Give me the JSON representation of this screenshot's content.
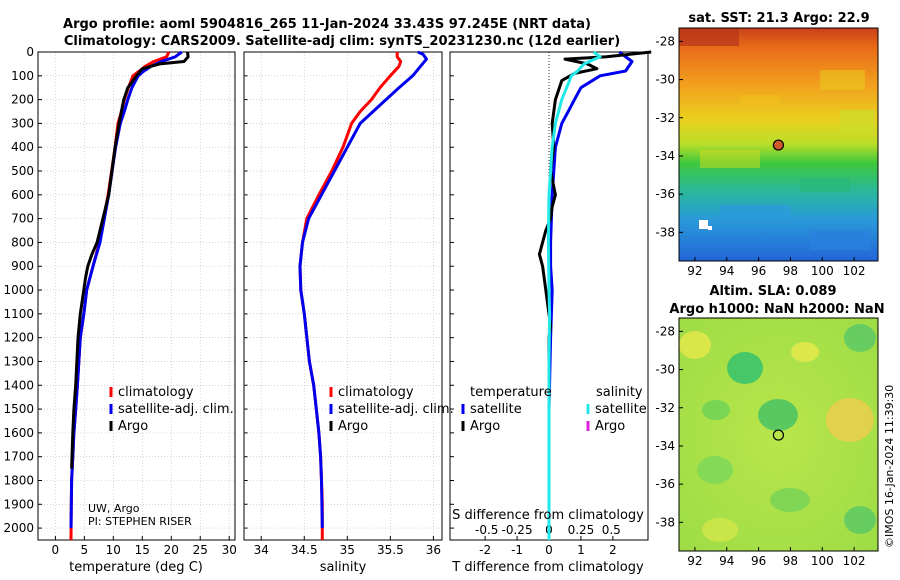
{
  "title_line1": "Argo profile: aoml 5904816_265 11-Jan-2024 33.43S 97.245E (NRT data)",
  "title_line2": "Climatology: CARS2009. Satellite-adj clim: synTS_20231230.nc (12d earlier)",
  "credit": "©IMOS 16-Jan-2024 11:39:30",
  "colors": {
    "clim": "#ff0000",
    "sat": "#0000ee",
    "argo": "#000000",
    "sat_s": "#22e8e8",
    "argo_s": "#dd22dd"
  },
  "depth_ticks": [
    "0",
    "100",
    "200",
    "300",
    "400",
    "500",
    "600",
    "700",
    "800",
    "900",
    "1000",
    "1100",
    "1200",
    "1300",
    "1400",
    "1500",
    "1600",
    "1700",
    "1800",
    "1900",
    "2000"
  ],
  "chart_data": [
    {
      "type": "line",
      "xlabel": "temperature (deg C)",
      "ylabel": "depth (dbar)",
      "xlim": [
        -3,
        31
      ],
      "ylim": [
        2050,
        0
      ],
      "xticks": [
        "0",
        "5",
        "10",
        "15",
        "20",
        "25",
        "30"
      ],
      "legend": [
        "climatology",
        "satellite-adj. clim.",
        "Argo"
      ],
      "annotation": [
        "UW, Argo",
        "PI: STEPHEN RISER"
      ],
      "series": [
        {
          "name": "climatology",
          "color": "#ff0000",
          "x": [
            19.6,
            19.2,
            17.0,
            15.5,
            14.5,
            13.4,
            12.6,
            11.9,
            11.4,
            10.8,
            10.3,
            9.1,
            7.6,
            6.5,
            5.4,
            4.9,
            4.3,
            3.8,
            3.5,
            3.2,
            3.0,
            2.8,
            2.75,
            2.7
          ],
          "y": [
            0,
            20,
            40,
            60,
            80,
            100,
            150,
            200,
            250,
            300,
            400,
            600,
            800,
            900,
            1000,
            1100,
            1200,
            1400,
            1500,
            1600,
            1700,
            1800,
            1900,
            2050
          ]
        },
        {
          "name": "satellite-adj. clim.",
          "color": "#0000ee",
          "x": [
            21.8,
            20.7,
            18.3,
            16.5,
            15.3,
            14.3,
            13.2,
            12.5,
            11.9,
            11.2,
            10.4,
            9.2,
            7.7,
            6.5,
            5.4,
            4.9,
            4.3,
            3.8,
            3.5,
            3.2,
            3.0,
            2.8,
            2.7
          ],
          "y": [
            0,
            20,
            40,
            60,
            80,
            100,
            150,
            200,
            250,
            300,
            400,
            600,
            800,
            900,
            1000,
            1100,
            1200,
            1400,
            1500,
            1600,
            1700,
            1800,
            2000
          ]
        },
        {
          "name": "Argo",
          "color": "#000000",
          "x": [
            22.8,
            22.9,
            22.2,
            18.0,
            15.0,
            14.0,
            12.5,
            11.8,
            11.4,
            11.0,
            10.3,
            9.2,
            7.2,
            6.3,
            5.6,
            5.2,
            4.9,
            4.3,
            3.9,
            3.5,
            3.2,
            3.0,
            2.8
          ],
          "y": [
            0,
            20,
            40,
            50,
            70,
            100,
            150,
            200,
            250,
            300,
            400,
            600,
            800,
            850,
            900,
            950,
            1000,
            1100,
            1200,
            1400,
            1500,
            1600,
            1750
          ]
        }
      ]
    },
    {
      "type": "line",
      "xlabel": "salinity",
      "ylabel": "depth (dbar)",
      "xlim": [
        33.8,
        36.1
      ],
      "ylim": [
        2050,
        0
      ],
      "xticks": [
        "34",
        "34.5",
        "35",
        "35.5",
        "36"
      ],
      "legend": [
        "climatology",
        "satellite-adj. clim.",
        "Argo"
      ],
      "series": [
        {
          "name": "climatology",
          "color": "#ff0000",
          "x": [
            35.58,
            35.58,
            35.62,
            35.6,
            35.5,
            35.38,
            35.28,
            35.15,
            35.05,
            34.95,
            34.82,
            34.67,
            34.53,
            34.48,
            34.45,
            34.46,
            34.5,
            34.56,
            34.61,
            34.64,
            34.67,
            34.69,
            34.7,
            34.71,
            34.71
          ],
          "y": [
            0,
            20,
            40,
            60,
            100,
            150,
            200,
            250,
            300,
            400,
            500,
            600,
            700,
            800,
            900,
            1000,
            1100,
            1300,
            1400,
            1500,
            1600,
            1700,
            1800,
            1900,
            2050
          ]
        },
        {
          "name": "satellite-adj. clim.",
          "color": "#0000ee",
          "x": [
            35.82,
            35.88,
            35.92,
            35.85,
            35.76,
            35.6,
            35.45,
            35.3,
            35.15,
            35.0,
            34.85,
            34.7,
            34.55,
            34.48,
            34.45,
            34.46,
            34.5,
            34.56,
            34.61,
            34.64,
            34.67,
            34.69,
            34.7,
            34.71
          ],
          "y": [
            0,
            10,
            30,
            60,
            100,
            150,
            200,
            250,
            300,
            400,
            500,
            600,
            700,
            800,
            900,
            1000,
            1100,
            1300,
            1400,
            1500,
            1600,
            1700,
            1800,
            2000
          ]
        },
        {
          "name": "Argo",
          "color": "#000000",
          "x": [],
          "y": []
        }
      ]
    },
    {
      "type": "line",
      "xlabel": "T difference from climatology",
      "xlabel_top": "S difference from climatology",
      "ylabel": "depth (dbar)",
      "xlim": [
        -3.1,
        3.1
      ],
      "ylim": [
        2050,
        0
      ],
      "xticks": [
        "-2",
        "-1",
        "0",
        "1",
        "2"
      ],
      "xticks_s": [
        "-0.5",
        "-0.25",
        "0",
        "0.25",
        "0.5"
      ],
      "legend_temperature_title": "temperature",
      "legend_salinity_title": "salinity",
      "legend_temperature": [
        "satellite",
        "Argo"
      ],
      "legend_salinity": [
        "satellite",
        "Argo"
      ],
      "series": [
        {
          "name": "temperature satellite",
          "color": "#0000ee",
          "x": [
            2.2,
            2.6,
            2.4,
            1.6,
            1.0,
            0.8,
            0.6,
            0.4,
            0.2,
            0.1,
            0.05,
            0.05,
            0.1,
            0.05,
            0.0,
            0.0
          ],
          "y": [
            0,
            40,
            80,
            100,
            150,
            200,
            250,
            300,
            400,
            600,
            800,
            900,
            1000,
            1200,
            1500,
            2000
          ]
        },
        {
          "name": "temperature Argo",
          "color": "#000000",
          "x": [
            3.2,
            1.8,
            0.5,
            1.2,
            1.5,
            0.8,
            0.4,
            0.2,
            0.1,
            0.15,
            0.05,
            0.2,
            0.1,
            0.05,
            -0.1,
            -0.2,
            -0.3,
            -0.2,
            -0.15,
            -0.1,
            -0.05,
            0.0,
            0.05,
            0.0,
            0.0,
            0.0,
            0.0
          ],
          "y": [
            0,
            20,
            30,
            50,
            70,
            90,
            120,
            200,
            300,
            400,
            500,
            600,
            650,
            700,
            750,
            800,
            850,
            900,
            950,
            1000,
            1050,
            1100,
            1150,
            1200,
            1400,
            1600,
            1750
          ]
        },
        {
          "name": "salinity satellite",
          "color": "#22e8e8",
          "x": [
            1.4,
            1.6,
            1.1,
            0.9,
            0.7,
            0.55,
            0.4,
            0.3,
            0.2,
            0.1,
            0.05,
            0.0,
            -0.02,
            0.0,
            0.02,
            0.0,
            0.0,
            0.0
          ],
          "y": [
            0,
            20,
            50,
            80,
            100,
            150,
            200,
            250,
            300,
            400,
            500,
            600,
            800,
            1000,
            1100,
            1300,
            1600,
            2050
          ]
        },
        {
          "name": "salinity Argo",
          "color": "#dd22dd",
          "x": [],
          "y": []
        }
      ]
    },
    {
      "type": "heatmap",
      "title": "sat. SST: 21.3 Argo: 22.9",
      "xlim": [
        91,
        103.5
      ],
      "ylim": [
        -39.5,
        -27.3
      ],
      "xticks": [
        "92",
        "94",
        "96",
        "98",
        "100",
        "102"
      ],
      "yticks": [
        "-28",
        "-30",
        "-32",
        "-34",
        "-36",
        "-38"
      ],
      "marker": {
        "lon": 97.245,
        "lat": -33.43
      }
    },
    {
      "type": "heatmap",
      "title": "Altim. SLA: 0.089",
      "title_line2": "Argo h1000: NaN h2000: NaN",
      "xlim": [
        91,
        103.5
      ],
      "ylim": [
        -39.5,
        -27.3
      ],
      "xticks": [
        "92",
        "94",
        "96",
        "98",
        "100",
        "102"
      ],
      "yticks": [
        "-28",
        "-30",
        "-32",
        "-34",
        "-36",
        "-38"
      ],
      "marker": {
        "lon": 97.245,
        "lat": -33.43
      }
    }
  ]
}
